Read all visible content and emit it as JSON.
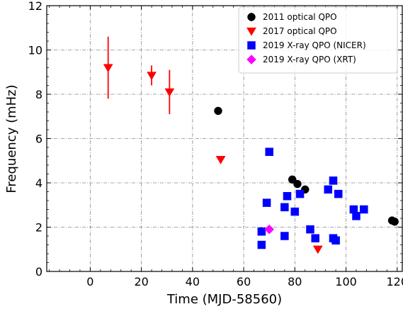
{
  "chart_data": {
    "type": "scatter",
    "xlabel": "Time (MJD-58560)",
    "ylabel": "Frequency (mHz)",
    "xlim": [
      -17,
      122
    ],
    "ylim": [
      0,
      12
    ],
    "xticks": [
      0,
      20,
      40,
      60,
      80,
      100,
      120
    ],
    "yticks": [
      0,
      2,
      4,
      6,
      8,
      10,
      12
    ],
    "grid": true,
    "legend_position": "top-right",
    "series": [
      {
        "name": "2011 optical QPO",
        "marker": "circle",
        "color": "#000000",
        "points": [
          {
            "x": 50,
            "y": 7.25
          },
          {
            "x": 79,
            "y": 4.15
          },
          {
            "x": 81,
            "y": 3.95
          },
          {
            "x": 84,
            "y": 3.7
          },
          {
            "x": 118,
            "y": 2.3
          },
          {
            "x": 119,
            "y": 2.25
          }
        ]
      },
      {
        "name": "2017 optical QPO",
        "marker": "triangle-down",
        "color": "#ff0000",
        "points": [
          {
            "x": 7,
            "y": 9.2,
            "yerr_low": 7.8,
            "yerr_high": 10.6
          },
          {
            "x": 24,
            "y": 8.85,
            "yerr_low": 8.4,
            "yerr_high": 9.3
          },
          {
            "x": 31,
            "y": 8.1,
            "yerr_low": 7.1,
            "yerr_high": 9.1
          },
          {
            "x": 51,
            "y": 5.05
          },
          {
            "x": 89,
            "y": 1.0
          }
        ]
      },
      {
        "name": "2019 X-ray QPO (NICER)",
        "marker": "square",
        "color": "#0000ff",
        "points": [
          {
            "x": 67,
            "y": 1.8
          },
          {
            "x": 67,
            "y": 1.2
          },
          {
            "x": 69,
            "y": 3.1
          },
          {
            "x": 70,
            "y": 5.4
          },
          {
            "x": 76,
            "y": 2.9
          },
          {
            "x": 76,
            "y": 1.6
          },
          {
            "x": 77,
            "y": 3.4
          },
          {
            "x": 80,
            "y": 2.7
          },
          {
            "x": 82,
            "y": 3.5
          },
          {
            "x": 86,
            "y": 1.9
          },
          {
            "x": 88,
            "y": 1.5
          },
          {
            "x": 93,
            "y": 3.7
          },
          {
            "x": 95,
            "y": 4.1
          },
          {
            "x": 95,
            "y": 1.5
          },
          {
            "x": 96,
            "y": 1.4
          },
          {
            "x": 97,
            "y": 3.5
          },
          {
            "x": 103,
            "y": 2.8
          },
          {
            "x": 104,
            "y": 2.5
          },
          {
            "x": 107,
            "y": 2.8
          }
        ]
      },
      {
        "name": "2019 X-ray QPO (XRT)",
        "marker": "diamond",
        "color": "#ff00ff",
        "points": [
          {
            "x": 70,
            "y": 1.9
          }
        ]
      }
    ]
  }
}
